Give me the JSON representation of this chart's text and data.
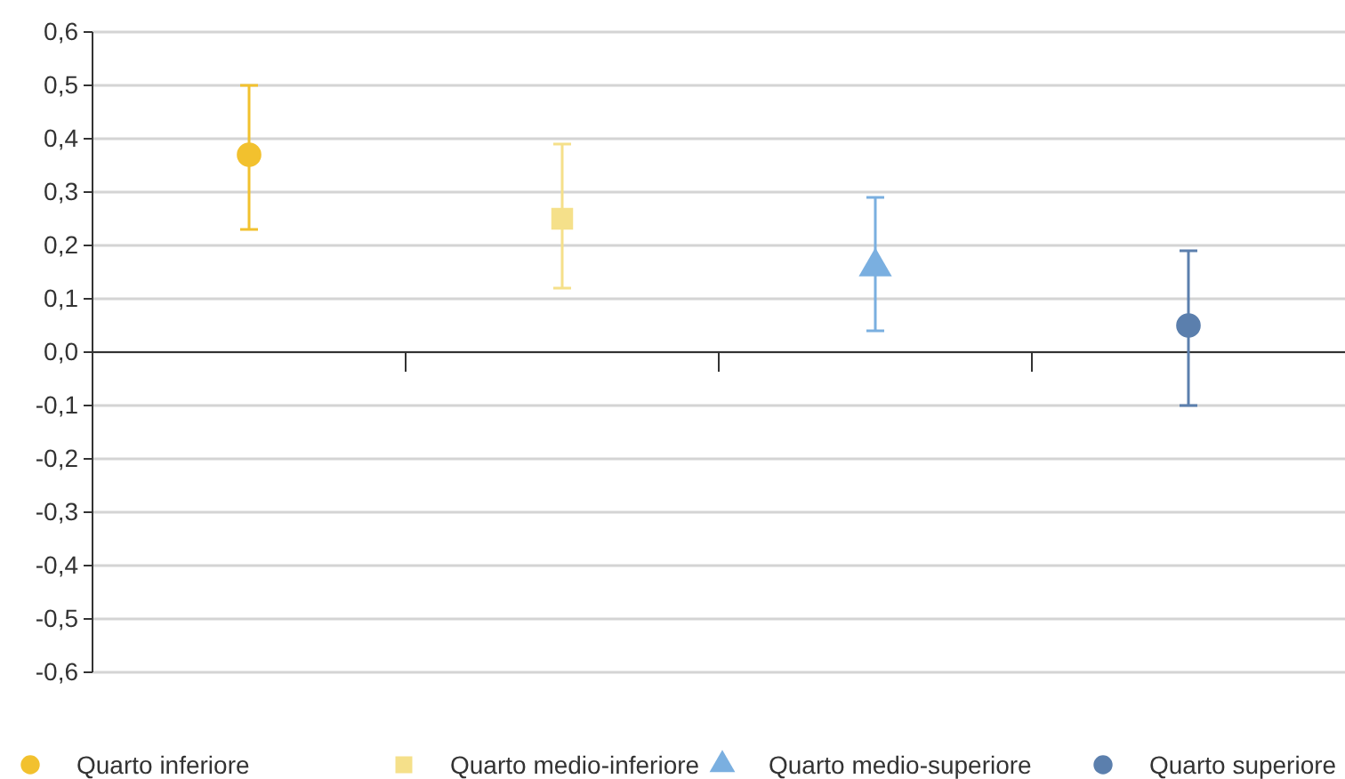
{
  "chart_data": {
    "type": "scatter",
    "categories": [
      null,
      null,
      null,
      null
    ],
    "series": [
      {
        "name": "Quarto inferiore",
        "color": "#f2c12e",
        "marker": "circle",
        "values": [
          0.37,
          null,
          null,
          null
        ],
        "errors": [
          [
            0.23,
            0.5
          ],
          null,
          null,
          null
        ]
      },
      {
        "name": "Quarto medio-inferiore",
        "color": "#f5e08a",
        "marker": "square",
        "values": [
          null,
          0.25,
          null,
          null
        ],
        "errors": [
          null,
          [
            0.12,
            0.39
          ],
          null,
          null
        ]
      },
      {
        "name": "Quarto medio-superiore",
        "color": "#7aafe0",
        "marker": "triangle",
        "values": [
          null,
          null,
          0.16,
          null
        ],
        "errors": [
          null,
          null,
          [
            0.04,
            0.29
          ],
          null
        ]
      },
      {
        "name": "Quarto superiore",
        "color": "#5b7fad",
        "marker": "circle",
        "values": [
          null,
          null,
          null,
          0.05
        ],
        "errors": [
          null,
          null,
          null,
          [
            -0.1,
            0.19
          ]
        ]
      }
    ],
    "ylim": [
      -0.6,
      0.6
    ],
    "yticks": [
      {
        "value": -0.6,
        "label": "-0,6"
      },
      {
        "value": -0.5,
        "label": "-0,5"
      },
      {
        "value": -0.4,
        "label": "-0,4"
      },
      {
        "value": -0.3,
        "label": "-0,3"
      },
      {
        "value": -0.2,
        "label": "-0,2"
      },
      {
        "value": -0.1,
        "label": "-0,1"
      },
      {
        "value": 0,
        "label": "0,0"
      },
      {
        "value": 0.1,
        "label": "0,1"
      },
      {
        "value": 0.2,
        "label": "0,2"
      },
      {
        "value": 0.3,
        "label": "0,3"
      },
      {
        "value": 0.4,
        "label": "0,4"
      },
      {
        "value": 0.5,
        "label": "0,5"
      },
      {
        "value": 0.6,
        "label": "0,6"
      }
    ],
    "grid": "y",
    "legend": "bottom"
  }
}
